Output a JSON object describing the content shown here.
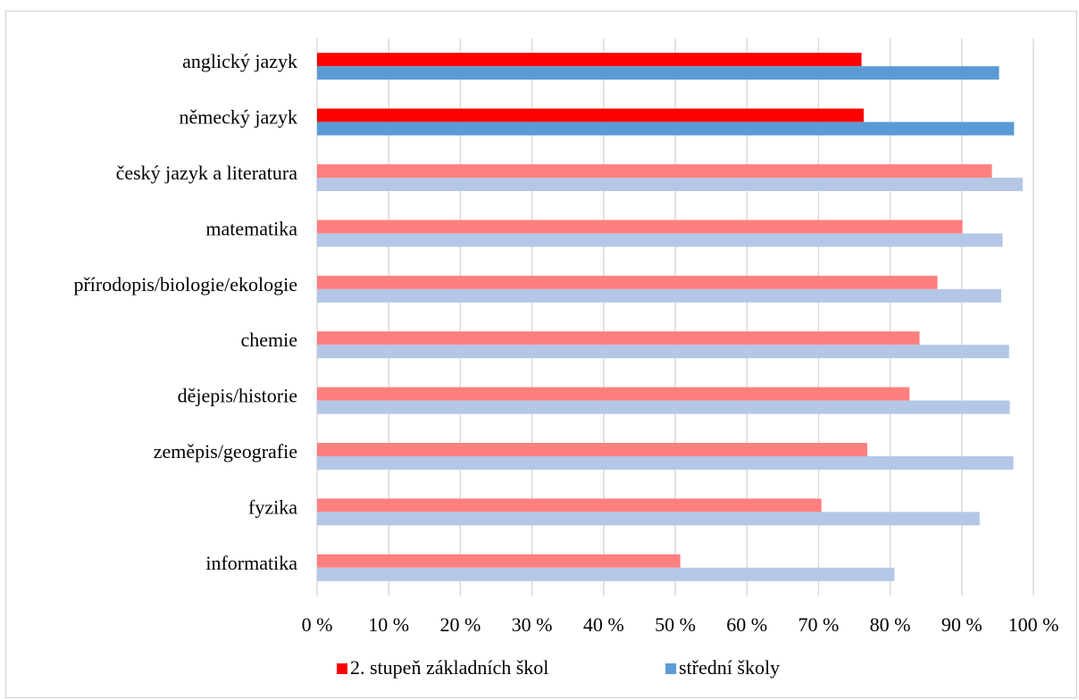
{
  "chart_data": {
    "type": "bar",
    "orientation": "horizontal",
    "categories": [
      "anglický jazyk",
      "německý jazyk",
      "český jazyk a literatura",
      "matematika",
      "přírodopis/biologie/ekologie",
      "chemie",
      "dějepis/historie",
      "zeměpis/geografie",
      "fyzika",
      "informatika"
    ],
    "series": [
      {
        "name": "2. stupeň základních škol",
        "values": [
          76,
          76.3,
          94.2,
          90.1,
          86.6,
          84.1,
          82.7,
          76.8,
          70.4,
          50.7
        ],
        "color": "#ff0000",
        "highlight_color": "#ff0000",
        "muted_color": "#ff7f7f"
      },
      {
        "name": "střední školy",
        "values": [
          95.2,
          97.3,
          98.5,
          95.7,
          95.5,
          96.6,
          96.7,
          97.2,
          92.5,
          80.6
        ],
        "color": "#5b9bd5",
        "highlight_color": "#5b9bd5",
        "muted_color": "#b4c7e7"
      }
    ],
    "highlighted_categories": [
      0,
      1
    ],
    "xlim": [
      0,
      100
    ],
    "xticks": [
      "0 %",
      "10 %",
      "20 %",
      "30 %",
      "40 %",
      "50 %",
      "60 %",
      "70 %",
      "80 %",
      "90 %",
      "100 %"
    ],
    "grid": "vertical",
    "legend_position": "bottom",
    "title": "",
    "xlabel": "",
    "ylabel": ""
  }
}
